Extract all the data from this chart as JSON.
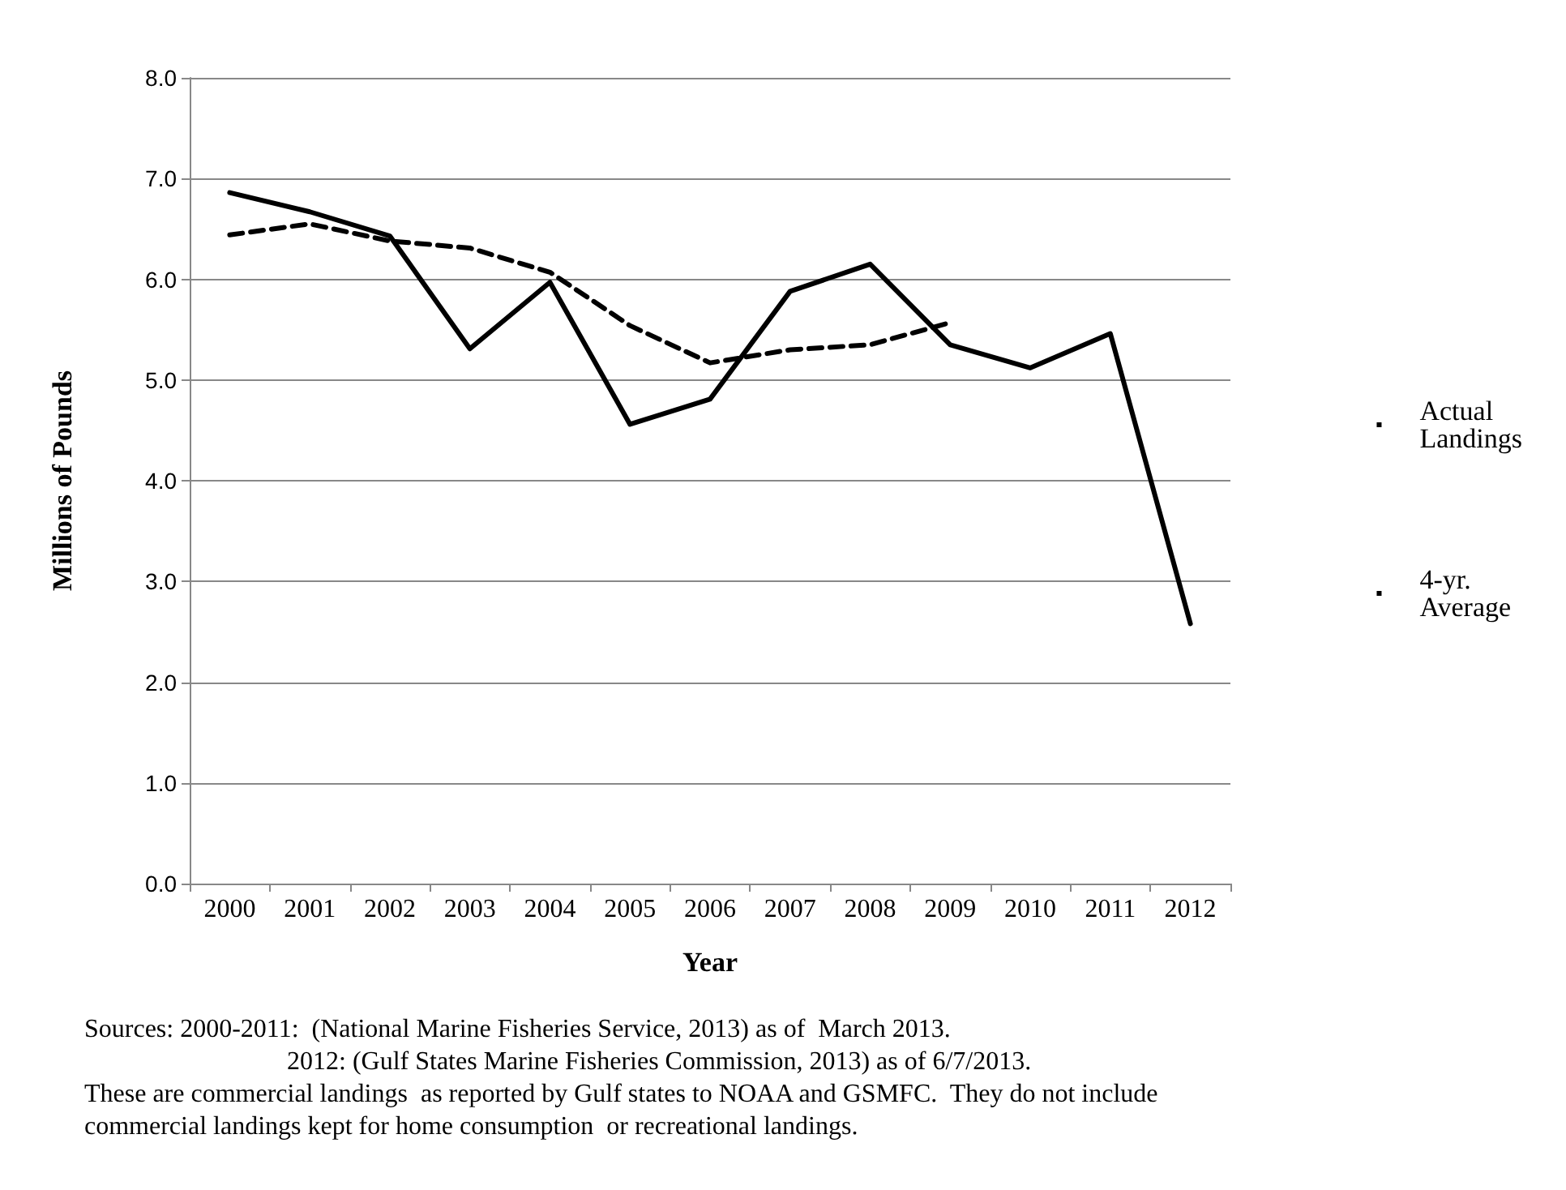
{
  "chart_data": {
    "type": "line",
    "xlabel": "Year",
    "ylabel": "Millions of Pounds",
    "categories": [
      "2000",
      "2001",
      "2002",
      "2003",
      "2004",
      "2005",
      "2006",
      "2007",
      "2008",
      "2009",
      "2010",
      "2011",
      "2012"
    ],
    "series": [
      {
        "name": "Actual Landings",
        "color": "#000000",
        "line_style": "solid",
        "values": [
          6.86,
          6.67,
          6.43,
          5.31,
          5.97,
          4.56,
          4.81,
          5.88,
          6.15,
          5.35,
          5.12,
          5.46,
          2.58
        ]
      },
      {
        "name": "4-yr. Average",
        "color": "#000000",
        "line_style": "dashed",
        "values": [
          6.44,
          6.55,
          6.38,
          6.31,
          6.07,
          5.54,
          5.17,
          5.3,
          5.35,
          5.57,
          null,
          null,
          null
        ]
      }
    ],
    "ylim": [
      0,
      8
    ],
    "yticks": [
      {
        "value": 0,
        "label": "0.0"
      },
      {
        "value": 1,
        "label": "1.0"
      },
      {
        "value": 2,
        "label": "2.0"
      },
      {
        "value": 3,
        "label": "3.0"
      },
      {
        "value": 4,
        "label": "4.0"
      },
      {
        "value": 5,
        "label": "5.0"
      },
      {
        "value": 6,
        "label": "6.0"
      },
      {
        "value": 7,
        "label": "7.0"
      },
      {
        "value": 8,
        "label": "8.0"
      }
    ],
    "grid": "y",
    "legend": "right",
    "marker": "none",
    "annotations": [
      "Sources: 2000-2011:  (National Marine Fisheries Service, 2013) as of  March 2013.",
      "2012: (Gulf States Marine Fisheries Commission, 2013) as of 6/7/2013.",
      "These are commercial landings  as reported by Gulf states to NOAA and GSMFC.  They do not include",
      "commercial landings kept for home consumption  or recreational landings."
    ]
  }
}
